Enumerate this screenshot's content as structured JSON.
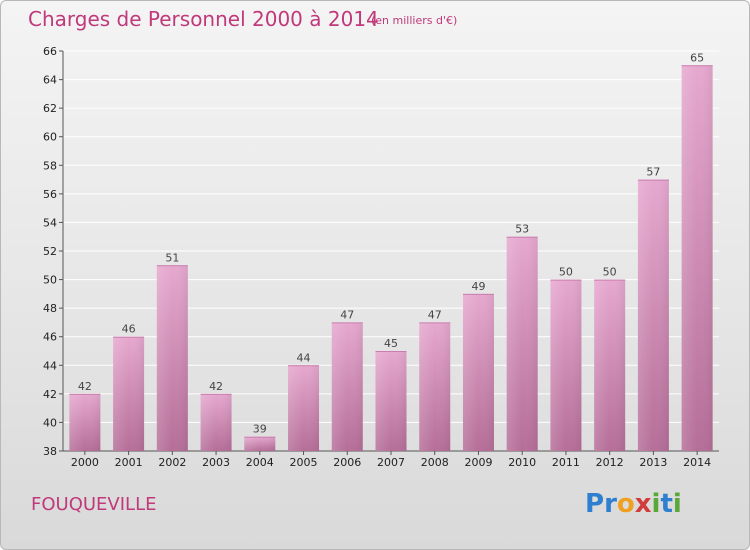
{
  "header": {
    "title": "Charges de Personnel 2000 à 2014",
    "subtitle": "(en milliers d'€)"
  },
  "footer": {
    "commune": "FOUQUEVILLE",
    "logo_text": "Proxiti"
  },
  "colors": {
    "title": "#c0397a",
    "bar_top": "#e6a8cf",
    "bar_bottom": "#b56e98",
    "gridline": "#ffffff"
  },
  "chart_data": {
    "type": "bar",
    "title": "Charges de Personnel 2000 à 2014",
    "subtitle": "(en milliers d'€)",
    "categories": [
      "2000",
      "2001",
      "2002",
      "2003",
      "2004",
      "2005",
      "2006",
      "2007",
      "2008",
      "2009",
      "2010",
      "2011",
      "2012",
      "2013",
      "2014"
    ],
    "values": [
      42,
      46,
      51,
      42,
      39,
      44,
      47,
      45,
      47,
      49,
      53,
      50,
      50,
      57,
      65
    ],
    "ylim": [
      38,
      66
    ],
    "yticks": [
      38,
      40,
      42,
      44,
      46,
      48,
      50,
      52,
      54,
      56,
      58,
      60,
      62,
      64,
      66
    ],
    "grid": true,
    "legend": "none"
  }
}
